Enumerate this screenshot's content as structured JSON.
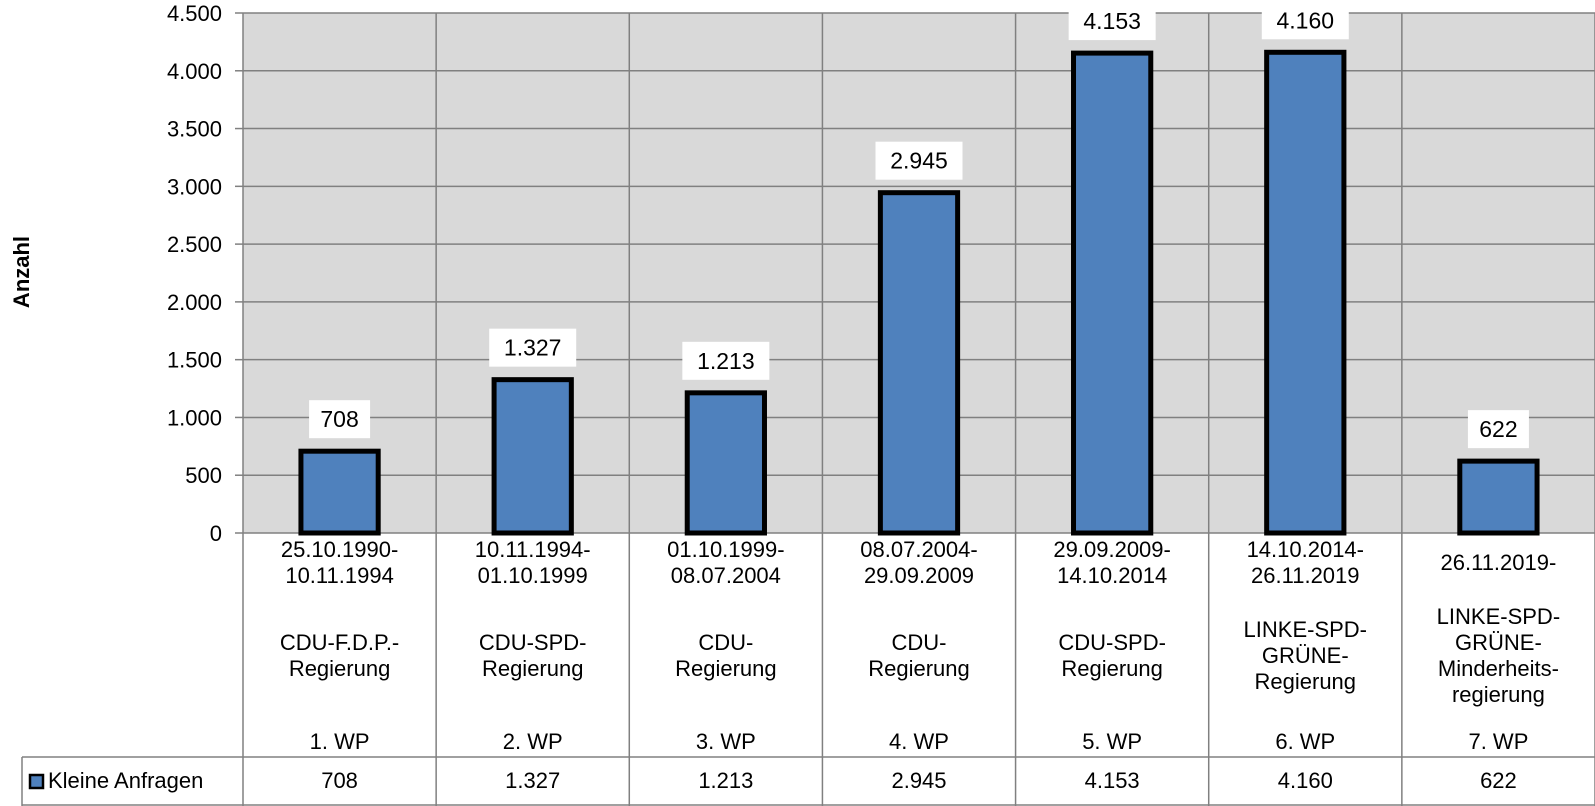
{
  "chart_data": {
    "type": "bar",
    "title": "",
    "xlabel": "",
    "ylabel": "Anzahl",
    "ylim": [
      0,
      4500
    ],
    "yticks": [
      0,
      500,
      1000,
      1500,
      2000,
      2500,
      3000,
      3500,
      4000,
      4500
    ],
    "ytick_labels": [
      "0",
      "500",
      "1.000",
      "1.500",
      "2.000",
      "2.500",
      "3.000",
      "3.500",
      "4.000",
      "4.500"
    ],
    "grid": true,
    "categories": [
      {
        "period": [
          "25.10.1990-",
          "10.11.1994"
        ],
        "government": [
          "CDU-F.D.P.-",
          "Regierung"
        ],
        "wp": "1. WP"
      },
      {
        "period": [
          "10.11.1994-",
          "01.10.1999"
        ],
        "government": [
          "CDU-SPD-",
          "Regierung"
        ],
        "wp": "2. WP"
      },
      {
        "period": [
          "01.10.1999-",
          "08.07.2004"
        ],
        "government": [
          "CDU-",
          "Regierung"
        ],
        "wp": "3. WP"
      },
      {
        "period": [
          "08.07.2004-",
          "29.09.2009"
        ],
        "government": [
          "CDU-",
          "Regierung"
        ],
        "wp": "4. WP"
      },
      {
        "period": [
          "29.09.2009-",
          "14.10.2014"
        ],
        "government": [
          "CDU-SPD-",
          "Regierung"
        ],
        "wp": "5. WP"
      },
      {
        "period": [
          "14.10.2014-",
          "26.11.2019"
        ],
        "government": [
          "LINKE-SPD-",
          "GRÜNE-",
          "Regierung"
        ],
        "wp": "6. WP"
      },
      {
        "period": [
          "26.11.2019-"
        ],
        "government": [
          "LINKE-SPD-",
          "GRÜNE-",
          "Minderheits-",
          "regierung"
        ],
        "wp": "7. WP"
      }
    ],
    "series": [
      {
        "name": "Kleine Anfragen",
        "values": [
          708,
          1327,
          1213,
          2945,
          4153,
          4160,
          622
        ],
        "labels": [
          "708",
          "1.327",
          "1.213",
          "2.945",
          "4.153",
          "4.160",
          "622"
        ],
        "color": "#4f81bd"
      }
    ],
    "legend": "data-table",
    "plot_background": "#d9d9d9"
  }
}
